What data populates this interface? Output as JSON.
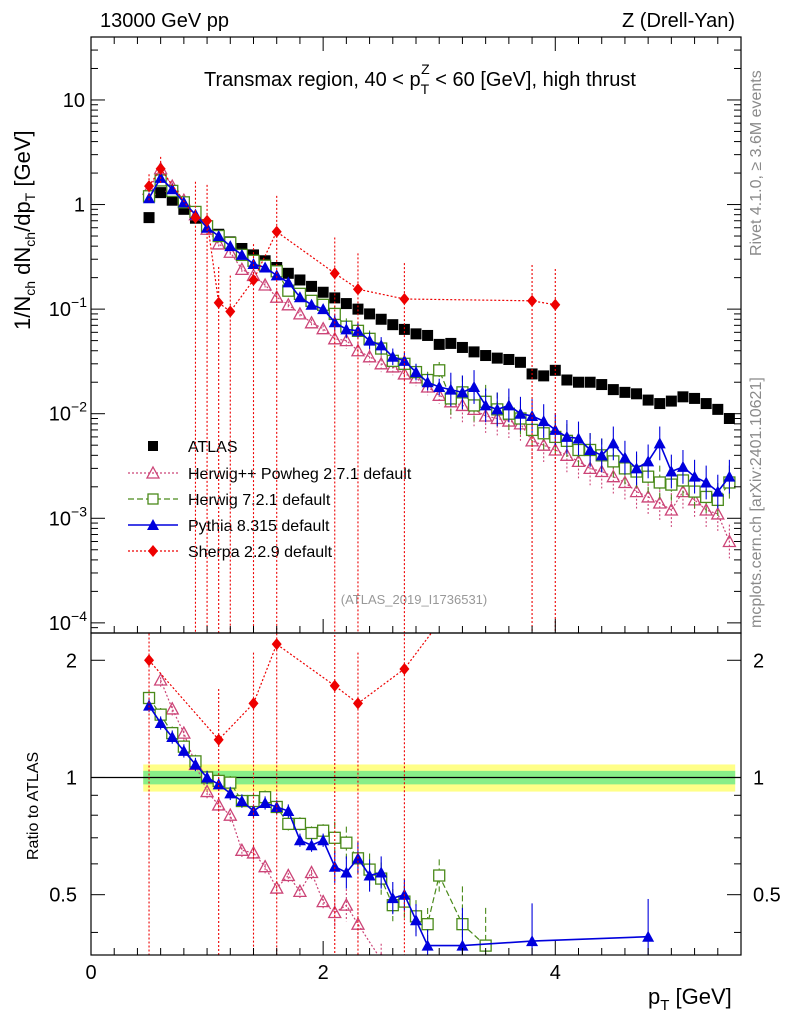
{
  "header": {
    "left": "13000 GeV pp",
    "right": "Z (Drell-Yan)"
  },
  "title": {
    "prefix": "Transmax region, 40 < p",
    "sup": "Z",
    "sub": "T",
    "suffix": " < 60 [GeV], high thrust"
  },
  "side_labels": {
    "rivet": "Rivet 4.1.0, ≥ 3.6M events",
    "mcplots": "mcplots.cern.ch [arXiv:2401.10621]"
  },
  "watermark": "(ATLAS_2019_I1736531)",
  "axes": {
    "ylabel_main": "1/N_ch dN_ch/dp_T [GeV]",
    "ylabel_ratio": "Ratio to ATLAS",
    "xlabel": "p_T [GeV]",
    "x_ticks": [
      "0",
      "2",
      "4"
    ],
    "main_y_ticks": [
      "10^-4",
      "10^-3",
      "10^-2",
      "10^-1",
      "1",
      "10"
    ],
    "ratio_y_ticks": [
      "0.5",
      "1",
      "2"
    ]
  },
  "colors": {
    "atlas": "#000000",
    "herwigpp": "#cc4477",
    "herwig7": "#4a8a1a",
    "pythia": "#0000dd",
    "sherpa": "#ee0000",
    "band_inner": "#88ee88",
    "band_outer": "#ffff88"
  },
  "chart_data": {
    "type": "scatter",
    "title": "Transmax region, 40 < pT^Z < 60 [GeV], high thrust",
    "xlabel": "pT [GeV]",
    "ylabel": "1/Nch dNch/dpT [GeV]",
    "xlim": [
      0,
      5.6
    ],
    "ylim_main": [
      8e-05,
      40
    ],
    "yscale_main": "log",
    "ylim_ratio": [
      0.35,
      2.35
    ],
    "yscale_ratio": "log",
    "legend_position": "lower-left",
    "x": [
      0.5,
      0.6,
      0.7,
      0.8,
      0.9,
      1.0,
      1.1,
      1.2,
      1.3,
      1.4,
      1.5,
      1.6,
      1.7,
      1.8,
      1.9,
      2.0,
      2.1,
      2.2,
      2.3,
      2.4,
      2.5,
      2.6,
      2.7,
      2.8,
      2.9,
      3.0,
      3.1,
      3.2,
      3.3,
      3.4,
      3.5,
      3.6,
      3.7,
      3.8,
      3.9,
      4.0,
      4.1,
      4.2,
      4.3,
      4.4,
      4.5,
      4.6,
      4.7,
      4.8,
      4.9,
      5.0,
      5.1,
      5.2,
      5.3,
      5.4,
      5.5
    ],
    "series": [
      {
        "name": "ATLAS",
        "marker": "square",
        "values": [
          0.75,
          1.3,
          1.1,
          0.9,
          0.74,
          0.62,
          0.52,
          0.44,
          0.38,
          0.33,
          0.29,
          0.25,
          0.22,
          0.19,
          0.165,
          0.145,
          0.128,
          0.113,
          0.1,
          0.09,
          0.08,
          0.071,
          0.064,
          0.058,
          0.056,
          0.046,
          0.047,
          0.043,
          0.039,
          0.036,
          0.034,
          0.033,
          0.031,
          0.024,
          0.023,
          0.026,
          0.021,
          0.02,
          0.02,
          0.019,
          0.017,
          0.016,
          0.0155,
          0.0135,
          0.0125,
          0.0132,
          0.0145,
          0.014,
          0.0125,
          0.011,
          0.009
        ]
      },
      {
        "name": "Herwig++ Powheg 2.7.1 default",
        "marker": "open-triangle",
        "values": [
          1.4,
          2.2,
          1.5,
          1.1,
          0.8,
          0.58,
          0.42,
          0.35,
          0.24,
          0.21,
          0.17,
          0.13,
          0.11,
          0.09,
          0.074,
          0.065,
          0.052,
          0.05,
          0.04,
          0.035,
          0.03,
          0.028,
          0.024,
          0.022,
          0.018,
          0.015,
          0.013,
          0.012,
          0.011,
          0.0095,
          0.009,
          0.0085,
          0.008,
          0.0055,
          0.005,
          0.0045,
          0.004,
          0.0035,
          0.003,
          0.0028,
          0.0025,
          0.0022,
          0.0018,
          0.0016,
          0.0014,
          0.0012,
          0.0018,
          0.0015,
          0.0012,
          0.0011,
          0.0006
        ]
      },
      {
        "name": "Herwig 7.2.1 default",
        "marker": "open-square",
        "values": [
          1.2,
          1.7,
          1.35,
          1.05,
          0.85,
          0.62,
          0.5,
          0.43,
          0.33,
          0.29,
          0.26,
          0.23,
          0.15,
          0.14,
          0.12,
          0.11,
          0.09,
          0.068,
          0.062,
          0.052,
          0.042,
          0.032,
          0.03,
          0.025,
          0.021,
          0.026,
          0.014,
          0.016,
          0.012,
          0.013,
          0.011,
          0.01,
          0.009,
          0.007,
          0.0065,
          0.006,
          0.0055,
          0.0045,
          0.0045,
          0.004,
          0.0035,
          0.003,
          0.0028,
          0.0025,
          0.0022,
          0.0021,
          0.0023,
          0.0018,
          0.0016,
          0.0015,
          0.0022
        ]
      },
      {
        "name": "Pythia 8.315 default",
        "marker": "triangle",
        "values": [
          1.15,
          1.8,
          1.4,
          1.05,
          0.8,
          0.6,
          0.5,
          0.4,
          0.33,
          0.27,
          0.25,
          0.21,
          0.18,
          0.13,
          0.11,
          0.1,
          0.075,
          0.064,
          0.062,
          0.05,
          0.045,
          0.035,
          0.032,
          0.025,
          0.02,
          0.018,
          0.017,
          0.016,
          0.018,
          0.012,
          0.011,
          0.012,
          0.01,
          0.0095,
          0.0085,
          0.007,
          0.006,
          0.0058,
          0.0045,
          0.004,
          0.0052,
          0.0038,
          0.003,
          0.0035,
          0.0052,
          0.0028,
          0.0031,
          0.0025,
          0.0022,
          0.0018,
          0.0025
        ]
      },
      {
        "name": "Sherpa 2.2.9 default",
        "marker": "diamond",
        "xs": [
          0.5,
          0.6,
          0.9,
          1.0,
          1.1,
          1.2,
          1.4,
          1.6,
          2.1,
          2.3,
          2.7,
          3.8,
          4.0
        ],
        "values": [
          1.5,
          2.2,
          0.75,
          0.7,
          0.115,
          0.095,
          0.19,
          0.55,
          0.22,
          0.155,
          0.125,
          0.12,
          0.11
        ]
      }
    ],
    "ratio_series": [
      {
        "name": "Herwig++ Powheg 2.7.1 default",
        "x": [
          0.6,
          0.7,
          0.8,
          0.9,
          1.0,
          1.1,
          1.2,
          1.3,
          1.4,
          1.5,
          1.6,
          1.7,
          1.8,
          1.9,
          2.0,
          2.1,
          2.2,
          2.3,
          2.5
        ],
        "values": [
          1.78,
          1.5,
          1.3,
          1.08,
          0.92,
          0.85,
          0.8,
          0.65,
          0.64,
          0.59,
          0.52,
          0.56,
          0.51,
          0.57,
          0.48,
          0.45,
          0.47,
          0.42,
          0.34
        ]
      },
      {
        "name": "Herwig 7.2.1 default",
        "x": [
          0.5,
          0.6,
          0.7,
          0.8,
          0.9,
          1.0,
          1.1,
          1.2,
          1.3,
          1.4,
          1.5,
          1.6,
          1.7,
          1.8,
          1.9,
          2.0,
          2.1,
          2.2,
          2.3,
          2.4,
          2.5,
          2.6,
          2.7,
          2.8,
          2.9,
          3.0,
          3.2,
          3.4
        ],
        "values": [
          1.6,
          1.45,
          1.3,
          1.2,
          1.1,
          1.0,
          0.98,
          0.97,
          0.87,
          0.87,
          0.89,
          0.84,
          0.76,
          0.76,
          0.72,
          0.73,
          0.7,
          0.68,
          0.62,
          0.58,
          0.55,
          0.47,
          0.48,
          0.44,
          0.42,
          0.56,
          0.42,
          0.37
        ]
      },
      {
        "name": "Pythia 8.315 default",
        "x": [
          0.5,
          0.6,
          0.7,
          0.8,
          0.9,
          1.0,
          1.1,
          1.2,
          1.3,
          1.4,
          1.5,
          1.6,
          1.7,
          1.8,
          1.9,
          2.0,
          2.1,
          2.2,
          2.3,
          2.4,
          2.5,
          2.6,
          2.7,
          2.8,
          2.9,
          3.2,
          3.8,
          4.8
        ],
        "values": [
          1.53,
          1.38,
          1.27,
          1.17,
          1.08,
          1.0,
          0.96,
          0.91,
          0.87,
          0.82,
          0.86,
          0.84,
          0.82,
          0.69,
          0.67,
          0.69,
          0.59,
          0.57,
          0.62,
          0.56,
          0.57,
          0.49,
          0.5,
          0.43,
          0.37,
          0.37,
          0.38,
          0.39
        ]
      },
      {
        "name": "Sherpa 2.2.9 default",
        "x": [
          0.5,
          1.1,
          1.4,
          1.6,
          2.1,
          2.3,
          2.7
        ],
        "values": [
          2.0,
          1.25,
          1.55,
          2.2,
          1.72,
          1.55,
          1.9
        ]
      }
    ],
    "reference_band": {
      "x": [
        0.45,
        5.55
      ],
      "inner": [
        0.96,
        1.04
      ],
      "outer": [
        0.92,
        1.08
      ]
    }
  }
}
